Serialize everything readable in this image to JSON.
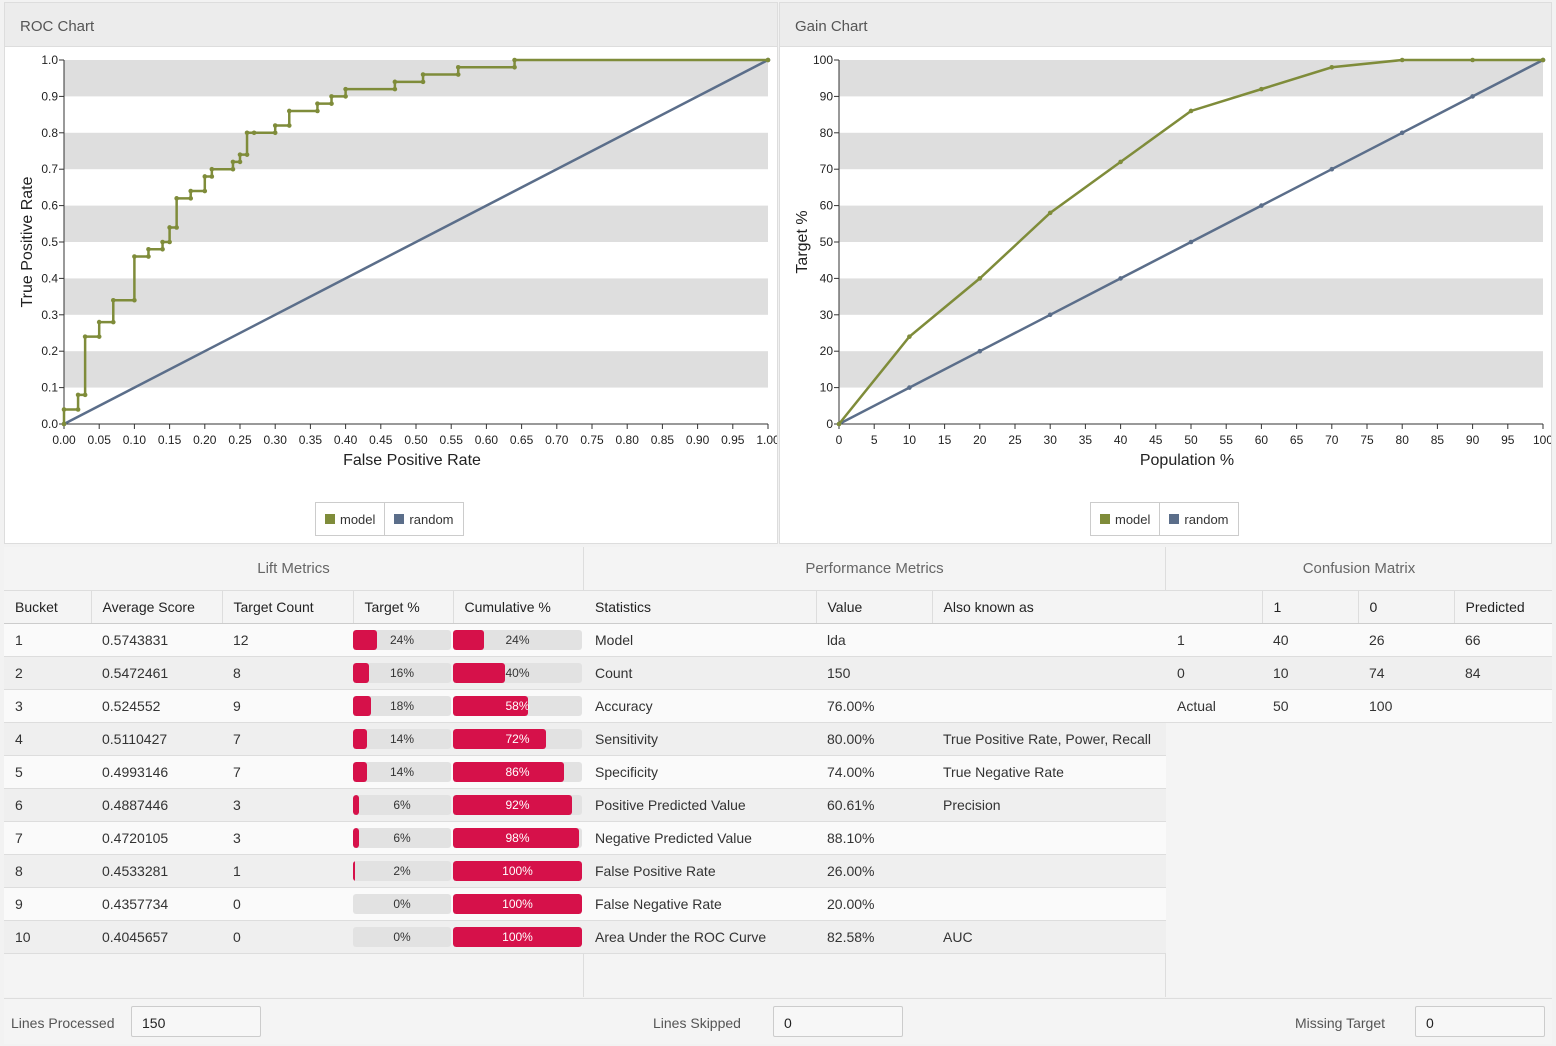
{
  "roc": {
    "title": "ROC Chart",
    "legend": [
      {
        "name": "model",
        "color": "#7f8c3a"
      },
      {
        "name": "random",
        "color": "#5b6e8a"
      }
    ]
  },
  "gain": {
    "title": "Gain Chart",
    "legend": [
      {
        "name": "model",
        "color": "#7f8c3a"
      },
      {
        "name": "random",
        "color": "#5b6e8a"
      }
    ]
  },
  "chart_data": [
    {
      "type": "line",
      "title": "ROC Chart",
      "xlabel": "False Positive Rate",
      "ylabel": "True Positive Rate",
      "xlim": [
        0,
        1
      ],
      "ylim": [
        0,
        1
      ],
      "x_ticks": [
        "0.00",
        "0.05",
        "0.10",
        "0.15",
        "0.20",
        "0.25",
        "0.30",
        "0.35",
        "0.40",
        "0.45",
        "0.50",
        "0.55",
        "0.60",
        "0.65",
        "0.70",
        "0.75",
        "0.80",
        "0.85",
        "0.90",
        "0.95",
        "1.00"
      ],
      "y_ticks": [
        "0.0",
        "0.1",
        "0.2",
        "0.3",
        "0.4",
        "0.5",
        "0.6",
        "0.7",
        "0.8",
        "0.9",
        "1.0"
      ],
      "legend": "bottom-center",
      "series": [
        {
          "name": "model",
          "color": "#7f8c3a",
          "points": [
            [
              0,
              0
            ],
            [
              0,
              0.04
            ],
            [
              0.02,
              0.04
            ],
            [
              0.02,
              0.08
            ],
            [
              0.03,
              0.08
            ],
            [
              0.03,
              0.24
            ],
            [
              0.05,
              0.24
            ],
            [
              0.05,
              0.28
            ],
            [
              0.07,
              0.28
            ],
            [
              0.07,
              0.34
            ],
            [
              0.1,
              0.34
            ],
            [
              0.1,
              0.46
            ],
            [
              0.12,
              0.46
            ],
            [
              0.12,
              0.48
            ],
            [
              0.14,
              0.48
            ],
            [
              0.14,
              0.5
            ],
            [
              0.15,
              0.5
            ],
            [
              0.15,
              0.54
            ],
            [
              0.16,
              0.54
            ],
            [
              0.16,
              0.62
            ],
            [
              0.18,
              0.62
            ],
            [
              0.18,
              0.64
            ],
            [
              0.2,
              0.64
            ],
            [
              0.2,
              0.68
            ],
            [
              0.21,
              0.68
            ],
            [
              0.21,
              0.7
            ],
            [
              0.24,
              0.7
            ],
            [
              0.24,
              0.72
            ],
            [
              0.25,
              0.72
            ],
            [
              0.25,
              0.74
            ],
            [
              0.26,
              0.74
            ],
            [
              0.26,
              0.8
            ],
            [
              0.27,
              0.8
            ],
            [
              0.3,
              0.8
            ],
            [
              0.3,
              0.82
            ],
            [
              0.32,
              0.82
            ],
            [
              0.32,
              0.86
            ],
            [
              0.36,
              0.86
            ],
            [
              0.36,
              0.88
            ],
            [
              0.38,
              0.88
            ],
            [
              0.38,
              0.9
            ],
            [
              0.4,
              0.9
            ],
            [
              0.4,
              0.92
            ],
            [
              0.47,
              0.92
            ],
            [
              0.47,
              0.94
            ],
            [
              0.51,
              0.94
            ],
            [
              0.51,
              0.96
            ],
            [
              0.56,
              0.96
            ],
            [
              0.56,
              0.98
            ],
            [
              0.64,
              0.98
            ],
            [
              0.64,
              1.0
            ],
            [
              1.0,
              1.0
            ]
          ]
        },
        {
          "name": "random",
          "color": "#5b6e8a",
          "points": [
            [
              0,
              0
            ],
            [
              1,
              1
            ]
          ]
        }
      ]
    },
    {
      "type": "line",
      "title": "Gain Chart",
      "xlabel": "Population %",
      "ylabel": "Target %",
      "xlim": [
        0,
        100
      ],
      "ylim": [
        0,
        100
      ],
      "x_ticks": [
        "0",
        "5",
        "10",
        "15",
        "20",
        "25",
        "30",
        "35",
        "40",
        "45",
        "50",
        "55",
        "60",
        "65",
        "70",
        "75",
        "80",
        "85",
        "90",
        "95",
        "100"
      ],
      "y_ticks": [
        "0",
        "10",
        "20",
        "30",
        "40",
        "50",
        "60",
        "70",
        "80",
        "90",
        "100"
      ],
      "legend": "bottom-center",
      "series": [
        {
          "name": "model",
          "color": "#7f8c3a",
          "points": [
            [
              0,
              0
            ],
            [
              10,
              24
            ],
            [
              20,
              40
            ],
            [
              30,
              58
            ],
            [
              40,
              72
            ],
            [
              50,
              86
            ],
            [
              60,
              92
            ],
            [
              70,
              98
            ],
            [
              80,
              100
            ],
            [
              90,
              100
            ],
            [
              100,
              100
            ]
          ]
        },
        {
          "name": "random",
          "color": "#5b6e8a",
          "points": [
            [
              0,
              0
            ],
            [
              10,
              10
            ],
            [
              20,
              20
            ],
            [
              30,
              30
            ],
            [
              40,
              40
            ],
            [
              50,
              50
            ],
            [
              60,
              60
            ],
            [
              70,
              70
            ],
            [
              80,
              80
            ],
            [
              90,
              90
            ],
            [
              100,
              100
            ]
          ]
        }
      ]
    }
  ],
  "lift": {
    "title": "Lift Metrics",
    "headers": [
      "Bucket",
      "Average Score",
      "Target Count",
      "Target %",
      "Cumulative %"
    ],
    "rows": [
      {
        "bucket": "1",
        "score": "0.5743831",
        "count": "12",
        "target": "24%",
        "target_pct": 24,
        "cum": "24%",
        "cum_pct": 24
      },
      {
        "bucket": "2",
        "score": "0.5472461",
        "count": "8",
        "target": "16%",
        "target_pct": 16,
        "cum": "40%",
        "cum_pct": 40
      },
      {
        "bucket": "3",
        "score": "0.524552",
        "count": "9",
        "target": "18%",
        "target_pct": 18,
        "cum": "58%",
        "cum_pct": 58
      },
      {
        "bucket": "4",
        "score": "0.5110427",
        "count": "7",
        "target": "14%",
        "target_pct": 14,
        "cum": "72%",
        "cum_pct": 72
      },
      {
        "bucket": "5",
        "score": "0.4993146",
        "count": "7",
        "target": "14%",
        "target_pct": 14,
        "cum": "86%",
        "cum_pct": 86
      },
      {
        "bucket": "6",
        "score": "0.4887446",
        "count": "3",
        "target": "6%",
        "target_pct": 6,
        "cum": "92%",
        "cum_pct": 92
      },
      {
        "bucket": "7",
        "score": "0.4720105",
        "count": "3",
        "target": "6%",
        "target_pct": 6,
        "cum": "98%",
        "cum_pct": 98
      },
      {
        "bucket": "8",
        "score": "0.4533281",
        "count": "1",
        "target": "2%",
        "target_pct": 2,
        "cum": "100%",
        "cum_pct": 100
      },
      {
        "bucket": "9",
        "score": "0.4357734",
        "count": "0",
        "target": "0%",
        "target_pct": 0,
        "cum": "100%",
        "cum_pct": 100
      },
      {
        "bucket": "10",
        "score": "0.4045657",
        "count": "0",
        "target": "0%",
        "target_pct": 0,
        "cum": "100%",
        "cum_pct": 100
      }
    ],
    "bar_color": "#d6114a"
  },
  "performance": {
    "title": "Performance Metrics",
    "headers": [
      "Statistics",
      "Value",
      "Also known as"
    ],
    "rows": [
      {
        "stat": "Model",
        "value": "lda",
        "aka": ""
      },
      {
        "stat": "Count",
        "value": "150",
        "aka": ""
      },
      {
        "stat": "Accuracy",
        "value": "76.00%",
        "aka": ""
      },
      {
        "stat": "Sensitivity",
        "value": "80.00%",
        "aka": "True Positive Rate, Power, Recall"
      },
      {
        "stat": "Specificity",
        "value": "74.00%",
        "aka": "True Negative Rate"
      },
      {
        "stat": "Positive Predicted Value",
        "value": "60.61%",
        "aka": "Precision"
      },
      {
        "stat": "Negative Predicted Value",
        "value": "88.10%",
        "aka": ""
      },
      {
        "stat": "False Positive Rate",
        "value": "26.00%",
        "aka": ""
      },
      {
        "stat": "False Negative Rate",
        "value": "20.00%",
        "aka": ""
      },
      {
        "stat": "Area Under the ROC Curve",
        "value": "82.58%",
        "aka": "AUC"
      }
    ]
  },
  "confusion": {
    "title": "Confusion Matrix",
    "headers": [
      "",
      "1",
      "0",
      "Predicted"
    ],
    "rows": [
      [
        "1",
        "40",
        "26",
        "66"
      ],
      [
        "0",
        "10",
        "74",
        "84"
      ],
      [
        "Actual",
        "50",
        "100",
        ""
      ]
    ]
  },
  "footer": {
    "lines_processed_label": "Lines Processed",
    "lines_processed": "150",
    "lines_skipped_label": "Lines Skipped",
    "lines_skipped": "0",
    "missing_target_label": "Missing Target",
    "missing_target": "0"
  }
}
